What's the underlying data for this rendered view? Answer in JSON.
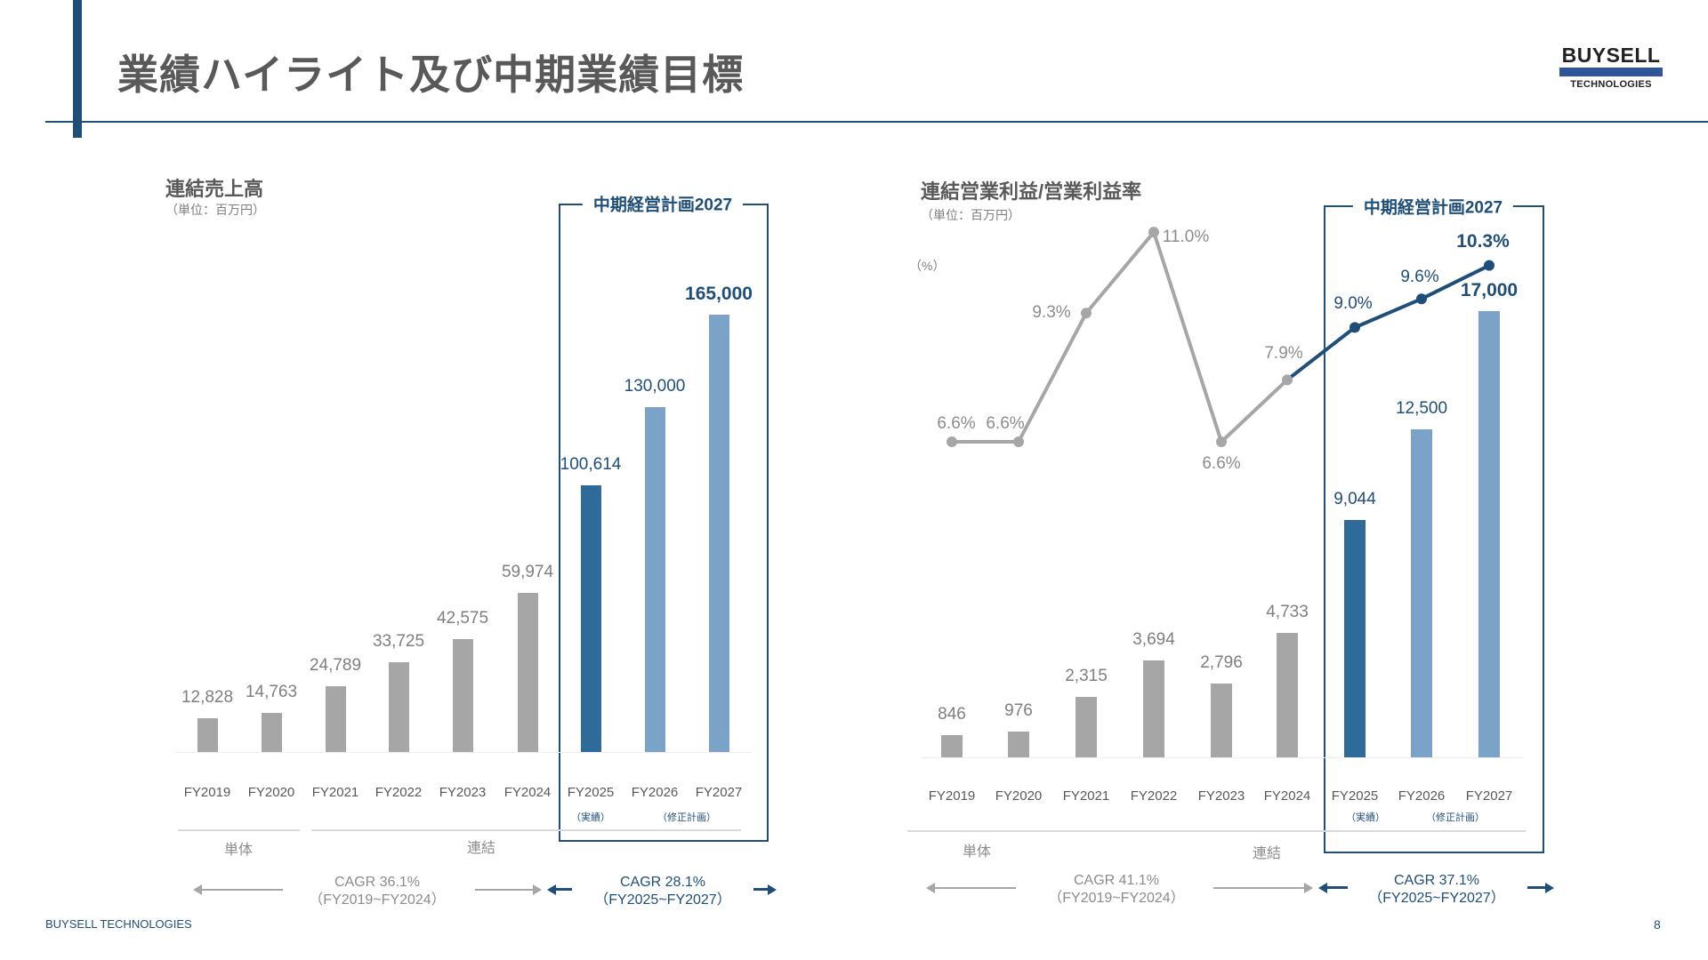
{
  "header": {
    "title": "業績ハイライト及び中期業績目標",
    "logo_line1": "BUYSELL",
    "logo_line2": "TECHNOLOGIES"
  },
  "footer": {
    "company": "BUYSELL TECHNOLOGIES",
    "page": "8"
  },
  "colors": {
    "accent": "#1f4e79",
    "gray_bar": "#a6a6a6",
    "actual_bar": "#2e6a9a",
    "plan_bar": "#7ba3c8"
  },
  "chart_data": [
    {
      "type": "bar",
      "title": "連結売上高",
      "unit": "（単位：百万円）",
      "categories": [
        "FY2019",
        "FY2020",
        "FY2021",
        "FY2022",
        "FY2023",
        "FY2024",
        "FY2025",
        "FY2026",
        "FY2027"
      ],
      "values": [
        12828,
        14763,
        24789,
        33725,
        42575,
        59974,
        100614,
        130000,
        165000
      ],
      "value_labels": [
        "12,828",
        "14,763",
        "24,789",
        "33,725",
        "42,575",
        "59,974",
        "100,614",
        "130,000",
        "165,000"
      ],
      "kinds": [
        "gray",
        "gray",
        "gray",
        "gray",
        "gray",
        "gray",
        "actual",
        "plan",
        "plan"
      ],
      "ylim": [
        0,
        165000
      ],
      "plan_box_title": "中期経営計画2027",
      "sublabels": {
        "actual": "（実績）",
        "plan": "（修正計画）"
      },
      "groups": {
        "standalone": "単体",
        "consolidated": "連結"
      },
      "cagr_past": {
        "label": "CAGR 36.1%",
        "range": "（FY2019~FY2024）"
      },
      "cagr_plan": {
        "label": "CAGR 28.1%",
        "range": "（FY2025~FY2027）"
      }
    },
    {
      "type": "bar+line",
      "title": "連結営業利益/営業利益率",
      "unit": "（単位：百万円）",
      "y2_unit": "（%）",
      "categories": [
        "FY2019",
        "FY2020",
        "FY2021",
        "FY2022",
        "FY2023",
        "FY2024",
        "FY2025",
        "FY2026",
        "FY2027"
      ],
      "values": [
        846,
        976,
        2315,
        3694,
        2796,
        4733,
        9044,
        12500,
        17000
      ],
      "value_labels": [
        "846",
        "976",
        "2,315",
        "3,694",
        "2,796",
        "4,733",
        "9,044",
        "12,500",
        "17,000"
      ],
      "kinds": [
        "gray",
        "gray",
        "gray",
        "gray",
        "gray",
        "gray",
        "actual",
        "plan",
        "plan"
      ],
      "ylim": [
        0,
        17000
      ],
      "margin_pct": [
        6.6,
        6.6,
        9.3,
        11.0,
        6.6,
        7.9,
        9.0,
        9.6,
        10.3
      ],
      "margin_labels": [
        "6.6%",
        "6.6%",
        "9.3%",
        "11.0%",
        "6.6%",
        "7.9%",
        "9.0%",
        "9.6%",
        "10.3%"
      ],
      "plan_box_title": "中期経営計画2027",
      "sublabels": {
        "actual": "（実績）",
        "plan": "（修正計画）"
      },
      "groups": {
        "standalone": "単体",
        "consolidated": "連結"
      },
      "cagr_past": {
        "label": "CAGR 41.1%",
        "range": "（FY2019~FY2024）"
      },
      "cagr_plan": {
        "label": "CAGR 37.1%",
        "range": "（FY2025~FY2027）"
      }
    }
  ]
}
